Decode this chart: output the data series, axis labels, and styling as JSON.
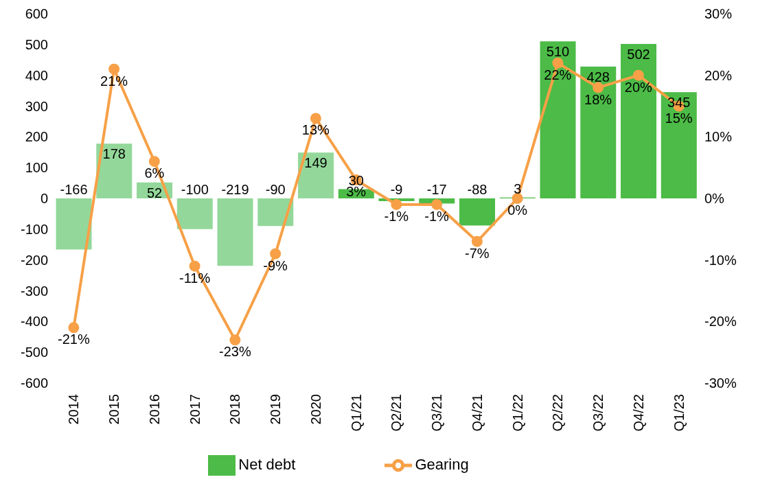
{
  "chart_data": {
    "type": "bar",
    "categories": [
      "2014",
      "2015",
      "2016",
      "2017",
      "2018",
      "2019",
      "2020",
      "Q1/21",
      "Q2/21",
      "Q3/21",
      "Q4/21",
      "Q1/22",
      "Q2/22",
      "Q3/22",
      "Q4/22",
      "Q1/23"
    ],
    "series": [
      {
        "name": "Net debt",
        "color": "#4cbb47",
        "colors": [
          "#93d89a",
          "#93d89a",
          "#93d89a",
          "#93d89a",
          "#93d89a",
          "#93d89a",
          "#93d89a",
          "#4cbb47",
          "#4cbb47",
          "#4cbb47",
          "#4cbb47",
          "#4cbb47",
          "#4cbb47",
          "#4cbb47",
          "#4cbb47",
          "#4cbb47"
        ],
        "values": [
          -166,
          178,
          52,
          -100,
          -219,
          -90,
          149,
          30,
          -9,
          -17,
          -88,
          3,
          510,
          428,
          502,
          345
        ],
        "value_labels": [
          "-166",
          "178",
          "52",
          "-100",
          "-219",
          "-90",
          "149",
          "30",
          "-9",
          "-17",
          "-88",
          "3",
          "510",
          "428",
          "502",
          "345"
        ]
      },
      {
        "name": "Gearing",
        "type": "line",
        "axis": "y2",
        "color": "#f7a047",
        "marker": "circle",
        "values": [
          -21,
          21,
          6,
          -11,
          -23,
          -9,
          13,
          3,
          -1,
          -1,
          -7,
          0,
          22,
          18,
          20,
          15
        ],
        "value_labels": [
          "-21%",
          "21%",
          "6%",
          "-11%",
          "-23%",
          "-9%",
          "13%",
          "3%",
          "-1%",
          "-1%",
          "-7%",
          "0%",
          "22%",
          "18%",
          "20%",
          "15%"
        ]
      }
    ],
    "ylim": [
      -600,
      600
    ],
    "yticks": [
      -600,
      -500,
      -400,
      -300,
      -200,
      -100,
      0,
      100,
      200,
      300,
      400,
      500,
      600
    ],
    "y2lim": [
      -30,
      30
    ],
    "y2ticks": [
      {
        "value": -30,
        "label": "-30%"
      },
      {
        "value": -20,
        "label": "-20%"
      },
      {
        "value": -10,
        "label": "-10%"
      },
      {
        "value": 0,
        "label": "0%"
      },
      {
        "value": 10,
        "label": "10%"
      },
      {
        "value": 20,
        "label": "20%"
      },
      {
        "value": 30,
        "label": "30%"
      }
    ],
    "legend": "bottom",
    "grid": false
  }
}
